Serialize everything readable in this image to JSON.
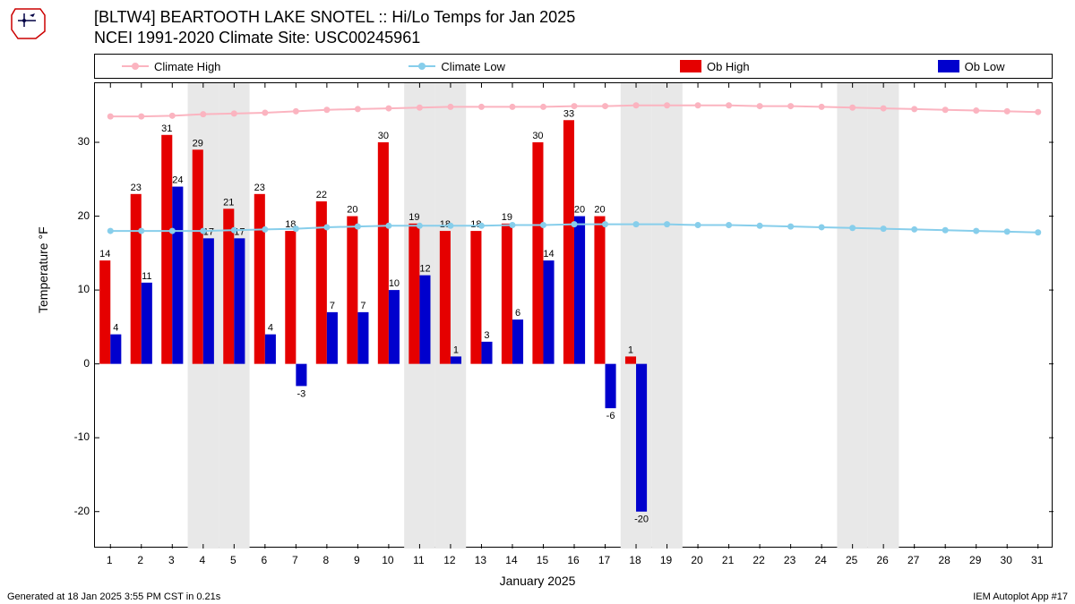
{
  "title_line1": "[BLTW4] BEARTOOTH LAKE SNOTEL :: Hi/Lo Temps for Jan 2025",
  "title_line2": "NCEI 1991-2020 Climate Site: USC00245961",
  "ylabel": "Temperature °F",
  "xlabel": "January 2025",
  "footer_left": "Generated at 18 Jan 2025 3:55 PM CST in 0.21s",
  "footer_right": "IEM Autoplot App #17",
  "legend": {
    "climate_high": "Climate High",
    "climate_low": "Climate Low",
    "ob_high": "Ob High",
    "ob_low": "Ob Low"
  },
  "colors": {
    "climate_high": "#fbb4c0",
    "climate_low": "#87ceeb",
    "ob_high": "#e50000",
    "ob_low": "#0000cd",
    "weekend_band": "#e8e8e8",
    "grid": "#000000",
    "background": "#ffffff"
  },
  "chart": {
    "type": "bar+line",
    "xlim": [
      0.5,
      31.5
    ],
    "ylim": [
      -25,
      38
    ],
    "yticks": [
      -20,
      -10,
      0,
      10,
      20,
      30
    ],
    "xticks": [
      1,
      2,
      3,
      4,
      5,
      6,
      7,
      8,
      9,
      10,
      11,
      12,
      13,
      14,
      15,
      16,
      17,
      18,
      19,
      20,
      21,
      22,
      23,
      24,
      25,
      26,
      27,
      28,
      29,
      30,
      31
    ],
    "weekend_days": [
      4,
      5,
      11,
      12,
      18,
      19,
      25,
      26
    ],
    "days": [
      1,
      2,
      3,
      4,
      5,
      6,
      7,
      8,
      9,
      10,
      11,
      12,
      13,
      14,
      15,
      16,
      17,
      18,
      19,
      20,
      21,
      22,
      23,
      24,
      25,
      26,
      27,
      28,
      29,
      30,
      31
    ],
    "ob_high": [
      14,
      23,
      31,
      29,
      21,
      23,
      18,
      22,
      20,
      30,
      19,
      18,
      18,
      19,
      30,
      33,
      20,
      1,
      null,
      null,
      null,
      null,
      null,
      null,
      null,
      null,
      null,
      null,
      null,
      null,
      null
    ],
    "ob_low": [
      4,
      11,
      24,
      17,
      17,
      4,
      -3,
      7,
      7,
      10,
      12,
      1,
      3,
      6,
      14,
      20,
      -6,
      -20,
      null,
      null,
      null,
      null,
      null,
      null,
      null,
      null,
      null,
      null,
      null,
      null,
      null
    ],
    "climate_high": [
      33.5,
      33.5,
      33.6,
      33.8,
      33.9,
      34.0,
      34.2,
      34.4,
      34.5,
      34.6,
      34.7,
      34.8,
      34.8,
      34.8,
      34.8,
      34.9,
      34.9,
      35.0,
      35.0,
      35.0,
      35.0,
      34.9,
      34.9,
      34.8,
      34.7,
      34.6,
      34.5,
      34.4,
      34.3,
      34.2,
      34.1
    ],
    "climate_low": [
      18.0,
      18.0,
      18.0,
      18.0,
      18.1,
      18.2,
      18.3,
      18.5,
      18.6,
      18.7,
      18.7,
      18.7,
      18.7,
      18.8,
      18.8,
      18.9,
      18.9,
      18.9,
      18.9,
      18.8,
      18.8,
      18.7,
      18.6,
      18.5,
      18.4,
      18.3,
      18.2,
      18.1,
      18.0,
      17.9,
      17.8
    ],
    "bar_width": 0.35,
    "label_fontsize": 11,
    "tick_fontsize": 12
  }
}
